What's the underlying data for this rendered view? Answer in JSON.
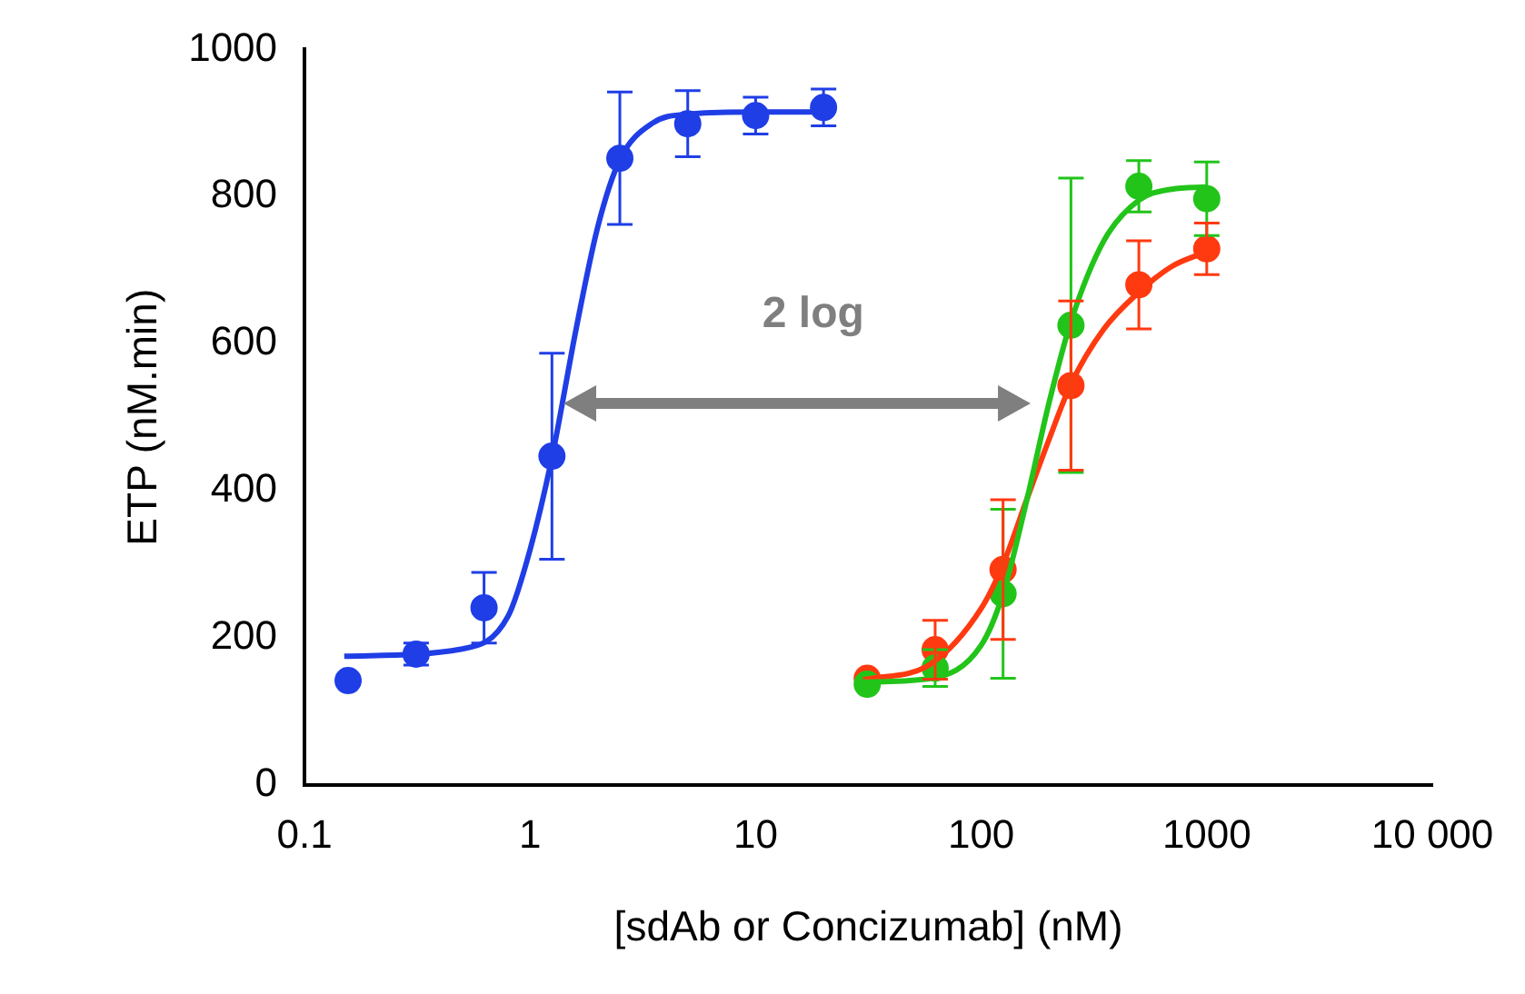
{
  "chart_data": {
    "type": "scatter",
    "xlabel": "[sdAb or Concizumab] (nM)",
    "ylabel": "ETP (nM.min)",
    "log": "x",
    "grid": false,
    "legend": false,
    "marker": "circle",
    "xlim": [
      0.1,
      10000
    ],
    "xticks": [
      0.1,
      1,
      10,
      100,
      1000,
      {
        "value": 10000,
        "label": "10 000"
      }
    ],
    "ylim": [
      0,
      1000
    ],
    "yticks": [
      0,
      200,
      400,
      600,
      800,
      1000
    ],
    "annotations": [
      "2 log"
    ],
    "series": [
      {
        "type": "line",
        "marker": "none",
        "color": "#1f3ee6",
        "x": [
          0.15,
          0.5,
          0.8,
          1,
          1.25,
          1.6,
          2,
          2.5,
          3.5,
          5,
          10,
          20
        ],
        "values": [
          175,
          185,
          230,
          320,
          445,
          620,
          760,
          850,
          900,
          912,
          915,
          915
        ]
      },
      {
        "type": "line",
        "marker": "none",
        "color": "#22c41a",
        "x": [
          30,
          60,
          100,
          125,
          160,
          200,
          250,
          350,
          500,
          700,
          1000
        ],
        "values": [
          140,
          145,
          190,
          260,
          390,
          520,
          630,
          740,
          795,
          810,
          813
        ]
      },
      {
        "type": "line",
        "marker": "none",
        "color": "#ff3a10",
        "x": [
          30,
          60,
          100,
          125,
          160,
          200,
          250,
          350,
          500,
          700,
          1000
        ],
        "values": [
          143,
          165,
          240,
          300,
          390,
          470,
          545,
          620,
          670,
          705,
          725
        ]
      },
      {
        "color": "#1f3ee6",
        "x": [
          0.156,
          0.3125,
          0.625,
          1.25,
          2.5,
          5,
          10,
          20
        ],
        "values": [
          142,
          178,
          241,
          447,
          852,
          899,
          910,
          921
        ],
        "errors": [
          null,
          15,
          48,
          140,
          90,
          45,
          25,
          25
        ]
      },
      {
        "color": "#22c41a",
        "x": [
          31.25,
          62.5,
          125,
          250,
          500,
          1000
        ],
        "values": [
          137,
          159,
          260,
          625,
          814,
          797
        ],
        "errors": [
          null,
          25,
          115,
          200,
          35,
          50
        ]
      },
      {
        "color": "#ff3a10",
        "x": [
          31.25,
          62.5,
          125,
          250,
          500,
          1000
        ],
        "values": [
          145,
          184,
          293,
          543,
          680,
          729
        ],
        "errors": [
          null,
          40,
          95,
          115,
          60,
          35
        ]
      }
    ]
  }
}
